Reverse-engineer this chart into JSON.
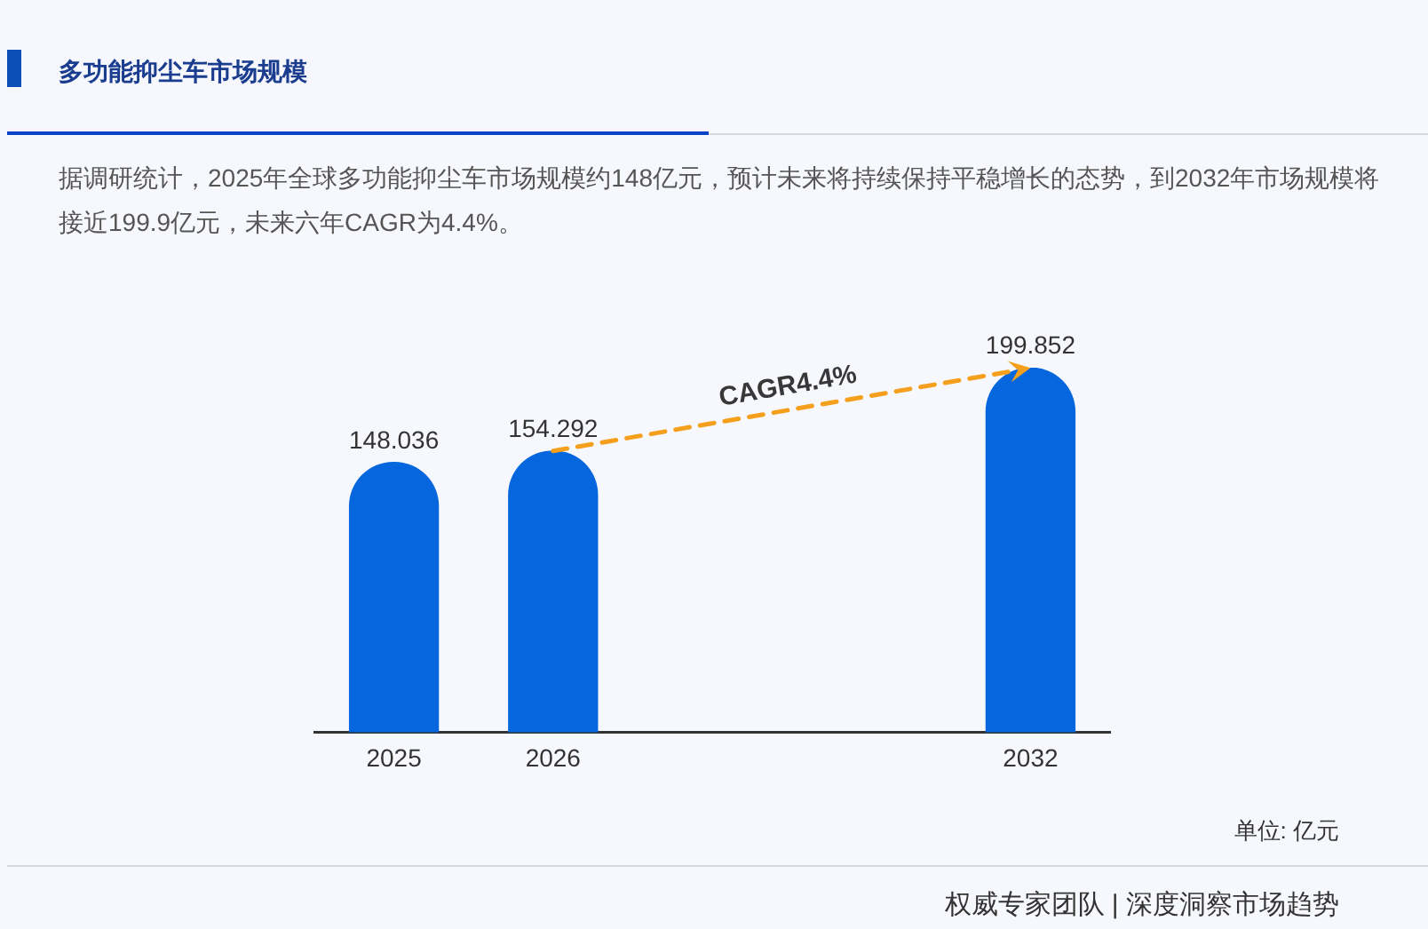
{
  "chart_data": {
    "type": "bar",
    "title": "多功能抑尘车市场规模",
    "subtitle": "据调研统计，2025年全球多功能抑尘车市场规模约148亿元，预计未来将持续保持平稳增长的态势，到2032年市场规模将接近199.9亿元，未来六年CAGR为4.4%。",
    "categories": [
      "2025",
      "2026",
      null,
      null,
      "2032"
    ],
    "values": [
      148.036,
      154.292,
      null,
      null,
      199.852
    ],
    "color": "#0566dd",
    "data_labels": true,
    "tick_labels": "x",
    "annotations": [
      "CAGR4.4%",
      "单位: 亿元",
      "权威专家团队 | 深度洞察市场趋势"
    ]
  }
}
